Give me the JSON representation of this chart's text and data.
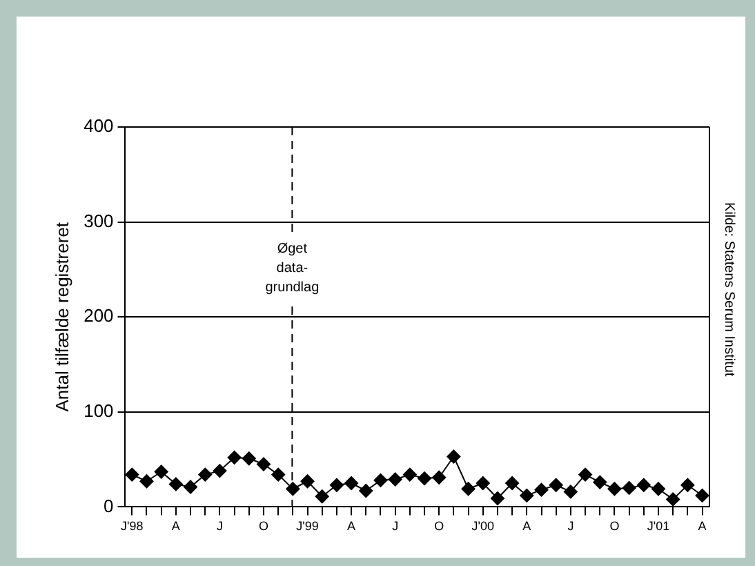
{
  "chart_data": {
    "type": "line",
    "ylabel": "Antal tilfælde registreret",
    "x": [
      "1998-01",
      "1998-02",
      "1998-03",
      "1998-04",
      "1998-05",
      "1998-06",
      "1998-07",
      "1998-08",
      "1998-09",
      "1998-10",
      "1998-11",
      "1998-12",
      "1999-01",
      "1999-02",
      "1999-03",
      "1999-04",
      "1999-05",
      "1999-06",
      "1999-07",
      "1999-08",
      "1999-09",
      "1999-10",
      "1999-11",
      "1999-12",
      "2000-01",
      "2000-02",
      "2000-03",
      "2000-04",
      "2000-05",
      "2000-06",
      "2000-07",
      "2000-08",
      "2000-09",
      "2000-10",
      "2000-11",
      "2000-12",
      "2001-01",
      "2001-02",
      "2001-03",
      "2001-04"
    ],
    "series": [
      {
        "color": "#000000",
        "values": [
          34,
          27,
          37,
          24,
          21,
          34,
          38,
          52,
          51,
          45,
          34,
          19,
          27,
          11,
          23,
          25,
          17,
          28,
          29,
          34,
          30,
          31,
          53,
          19,
          25,
          9,
          25,
          12,
          18,
          23,
          16,
          34,
          26,
          19,
          20,
          23,
          19,
          8,
          23,
          12
        ]
      }
    ],
    "xlim": [
      "1997-12-16",
      "2001-04-16"
    ],
    "xticks": [
      {
        "value": "1998-01",
        "label": "J'98"
      },
      {
        "value": "1998-02",
        "label": null
      },
      {
        "value": "1998-03",
        "label": null
      },
      {
        "value": "1998-04",
        "label": "A"
      },
      {
        "value": "1998-05",
        "label": null
      },
      {
        "value": "1998-06",
        "label": null
      },
      {
        "value": "1998-07",
        "label": "J"
      },
      {
        "value": "1998-08",
        "label": null
      },
      {
        "value": "1998-09",
        "label": null
      },
      {
        "value": "1998-10",
        "label": "O"
      },
      {
        "value": "1998-11",
        "label": null
      },
      {
        "value": "1998-12",
        "label": null
      },
      {
        "value": "1999-01",
        "label": "J'99"
      },
      {
        "value": "1999-02",
        "label": null
      },
      {
        "value": "1999-03",
        "label": null
      },
      {
        "value": "1999-04",
        "label": "A"
      },
      {
        "value": "1999-05",
        "label": null
      },
      {
        "value": "1999-06",
        "label": null
      },
      {
        "value": "1999-07",
        "label": "J"
      },
      {
        "value": "1999-08",
        "label": null
      },
      {
        "value": "1999-09",
        "label": null
      },
      {
        "value": "1999-10",
        "label": "O"
      },
      {
        "value": "1999-11",
        "label": null
      },
      {
        "value": "1999-12",
        "label": null
      },
      {
        "value": "2000-01",
        "label": "J'00"
      },
      {
        "value": "2000-02",
        "label": null
      },
      {
        "value": "2000-03",
        "label": null
      },
      {
        "value": "2000-04",
        "label": "A"
      },
      {
        "value": "2000-05",
        "label": null
      },
      {
        "value": "2000-06",
        "label": null
      },
      {
        "value": "2000-07",
        "label": "J"
      },
      {
        "value": "2000-08",
        "label": null
      },
      {
        "value": "2000-09",
        "label": null
      },
      {
        "value": "2000-10",
        "label": "O"
      },
      {
        "value": "2000-11",
        "label": null
      },
      {
        "value": "2000-12",
        "label": null
      },
      {
        "value": "2001-01",
        "label": "J'01"
      },
      {
        "value": "2001-02",
        "label": null
      },
      {
        "value": "2001-03",
        "label": null
      },
      {
        "value": "2001-04",
        "label": "A"
      }
    ],
    "ylim": [
      0,
      400
    ],
    "yticks": [
      0,
      100,
      200,
      300,
      400
    ],
    "grid": "y",
    "marker": "diamond",
    "line_style": "solid",
    "legend": false,
    "ref_lines": [
      {
        "axis": "x",
        "value": "1998-11-30",
        "label": "Øget data-grundlag",
        "line_style": "dashed"
      }
    ],
    "annotations": [
      "Kilde: Statens Serum Institut"
    ]
  }
}
